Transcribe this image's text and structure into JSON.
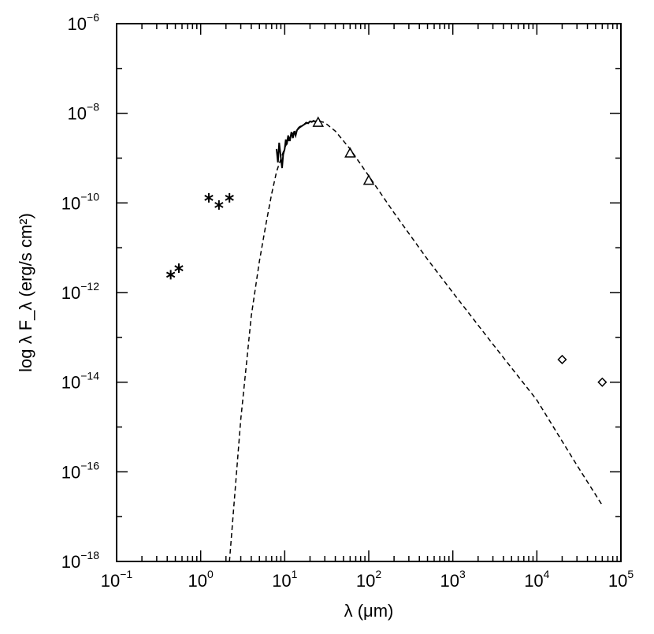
{
  "chart_data": {
    "type": "scatter",
    "title": "",
    "xlabel": "λ (μm)",
    "ylabel": "log λ F_λ (erg/s cm²)",
    "xscale": "log",
    "yscale": "log",
    "xlim": [
      0.1,
      100000
    ],
    "ylim": [
      1e-18,
      1e-06
    ],
    "x_ticks": [
      {
        "value": 0.1,
        "base": "10",
        "exp": "−1"
      },
      {
        "value": 1,
        "base": "10",
        "exp": "0"
      },
      {
        "value": 10,
        "base": "10",
        "exp": "1"
      },
      {
        "value": 100,
        "base": "10",
        "exp": "2"
      },
      {
        "value": 1000,
        "base": "10",
        "exp": "3"
      },
      {
        "value": 10000,
        "base": "10",
        "exp": "4"
      },
      {
        "value": 100000,
        "base": "10",
        "exp": "5"
      }
    ],
    "y_ticks": [
      {
        "value": 1e-18,
        "base": "10",
        "exp": "−18"
      },
      {
        "value": 1e-16,
        "base": "10",
        "exp": "−16"
      },
      {
        "value": 1e-14,
        "base": "10",
        "exp": "−14"
      },
      {
        "value": 1e-12,
        "base": "10",
        "exp": "−12"
      },
      {
        "value": 1e-10,
        "base": "10",
        "exp": "−10"
      },
      {
        "value": 1e-08,
        "base": "10",
        "exp": "−8"
      },
      {
        "value": 1e-06,
        "base": "10",
        "exp": "−6"
      }
    ],
    "grid": false,
    "legend": "none",
    "series": [
      {
        "marker": "asterisk",
        "x": [
          0.44,
          0.55,
          1.25,
          1.65,
          2.2
        ],
        "y": [
          2.5e-12,
          3.5e-12,
          1.3e-10,
          9e-11,
          1.3e-10
        ]
      },
      {
        "marker": "triangle",
        "x": [
          25,
          60,
          100
        ],
        "y": [
          6.3e-09,
          1.3e-09,
          3.2e-10
        ]
      },
      {
        "marker": "diamond",
        "x": [
          20000,
          60000
        ],
        "y": [
          3.2e-14,
          1e-14
        ]
      },
      {
        "style": "solid-spectrum",
        "x": [
          8,
          8.3,
          8.6,
          9,
          9.3,
          9.6,
          10,
          10.3,
          10.6,
          11,
          11.5,
          12,
          12.5,
          13,
          13.5,
          14,
          15,
          16,
          17,
          18,
          19,
          20,
          21,
          22,
          23
        ],
        "y": [
          1.6e-09,
          8e-10,
          2.2e-09,
          1e-09,
          6e-10,
          1.2e-09,
          1.6e-09,
          2.6e-09,
          2e-09,
          3.2e-09,
          2.4e-09,
          3.8e-09,
          2.8e-09,
          4e-09,
          3.2e-09,
          4.2e-09,
          4.8e-09,
          5.2e-09,
          5.6e-09,
          6.2e-09,
          6e-09,
          6.6e-09,
          6.4e-09,
          6.8e-09,
          6.5e-09
        ]
      },
      {
        "style": "dashed-model",
        "x": [
          2.2,
          2.6,
          3,
          3.5,
          4,
          5,
          6,
          7,
          8,
          10,
          12,
          15,
          20,
          25,
          30,
          40,
          60,
          100,
          200,
          500,
          1000,
          3000,
          10000,
          30000,
          60000
        ],
        "y": [
          1e-18,
          5e-17,
          1.5e-15,
          2.5e-14,
          3e-13,
          5e-12,
          3.5e-11,
          1.6e-10,
          5e-10,
          1.7e-09,
          3.3e-09,
          5e-09,
          6.5e-09,
          6.8e-09,
          6.2e-09,
          4e-09,
          1.6e-09,
          4e-10,
          6e-11,
          5.5e-12,
          1e-12,
          7e-14,
          4e-15,
          1.4e-16,
          1.8e-17
        ]
      }
    ]
  }
}
